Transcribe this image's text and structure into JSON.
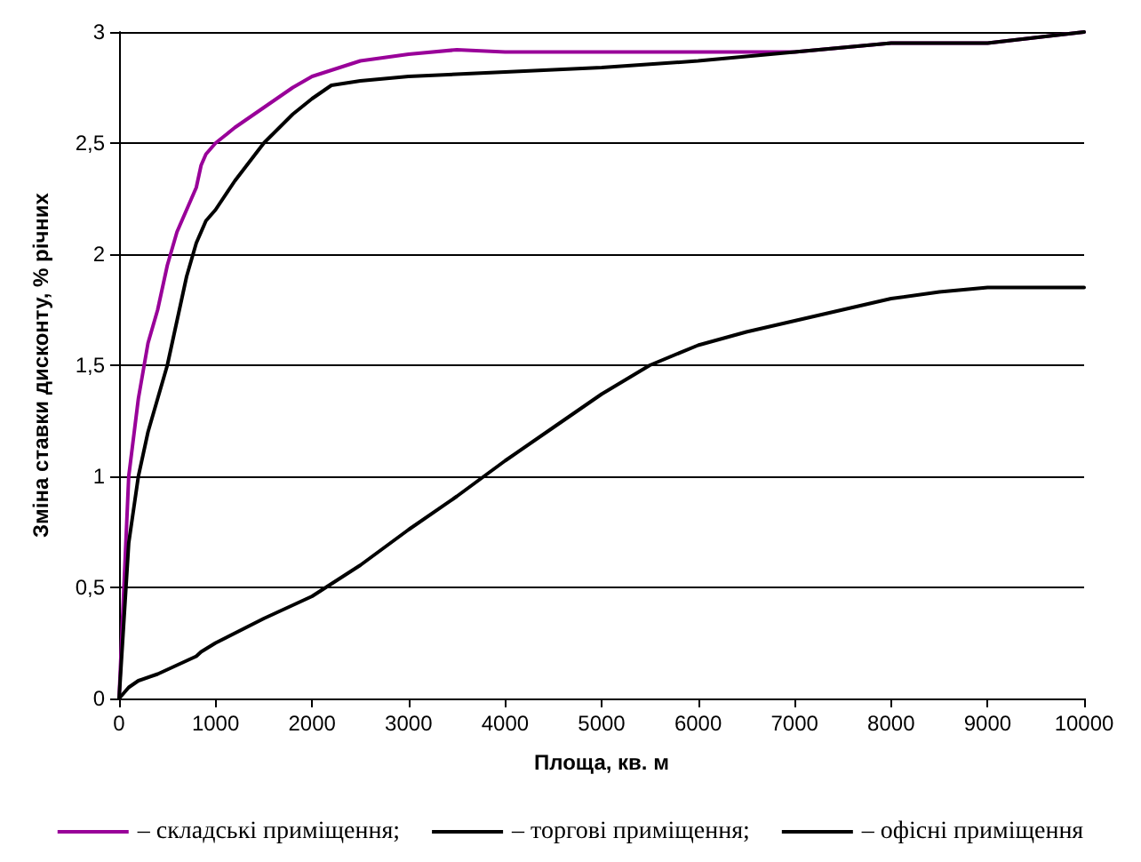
{
  "chart_data": {
    "type": "line",
    "xlabel": "Площа, кв. м",
    "ylabel": "Зміна ставки дисконту, % річних",
    "xlim": [
      0,
      10000
    ],
    "xticks": [
      0,
      1000,
      2000,
      3000,
      4000,
      5000,
      6000,
      7000,
      8000,
      9000,
      10000
    ],
    "ylim": [
      0,
      3
    ],
    "yticks": [
      0,
      {
        "value": 0.5,
        "label": "0,5"
      },
      1,
      {
        "value": 1.5,
        "label": "1,5"
      },
      2,
      {
        "value": 2.5,
        "label": "2,5"
      },
      3
    ],
    "grid": "y",
    "legend": "bottom",
    "marker": "none",
    "line_style": "solid",
    "series": [
      {
        "name": "– складські приміщення;",
        "color": "#990099",
        "x": [
          0,
          100,
          200,
          300,
          400,
          500,
          600,
          700,
          800,
          850,
          900,
          1000,
          1200,
          1500,
          1800,
          2000,
          2500,
          3000,
          3500,
          4000,
          5000,
          6000,
          7000,
          7500,
          8000,
          9000,
          10000
        ],
        "values": [
          0,
          1.0,
          1.35,
          1.6,
          1.75,
          1.95,
          2.1,
          2.2,
          2.3,
          2.4,
          2.45,
          2.5,
          2.57,
          2.66,
          2.75,
          2.8,
          2.87,
          2.9,
          2.92,
          2.91,
          2.91,
          2.91,
          2.91,
          2.93,
          2.95,
          2.95,
          3.0
        ]
      },
      {
        "name": "– торгові приміщення;",
        "color": "#000000",
        "x": [
          0,
          100,
          200,
          300,
          400,
          500,
          600,
          700,
          800,
          900,
          1000,
          1200,
          1500,
          1800,
          2000,
          2200,
          2500,
          3000,
          4000,
          5000,
          6000,
          7000,
          8000,
          9000,
          10000
        ],
        "values": [
          0,
          0.7,
          1.0,
          1.2,
          1.35,
          1.5,
          1.7,
          1.9,
          2.05,
          2.15,
          2.2,
          2.33,
          2.5,
          2.63,
          2.7,
          2.76,
          2.78,
          2.8,
          2.82,
          2.84,
          2.87,
          2.91,
          2.95,
          2.95,
          3.0
        ]
      },
      {
        "name": "– офісні приміщення",
        "color": "#000000",
        "x": [
          0,
          100,
          200,
          400,
          600,
          800,
          850,
          1000,
          1500,
          2000,
          2500,
          3000,
          3500,
          4000,
          4500,
          5000,
          5500,
          6000,
          6500,
          7000,
          7500,
          8000,
          8500,
          9000,
          10000
        ],
        "values": [
          0,
          0.05,
          0.08,
          0.11,
          0.15,
          0.19,
          0.21,
          0.25,
          0.36,
          0.46,
          0.6,
          0.76,
          0.91,
          1.07,
          1.22,
          1.37,
          1.5,
          1.59,
          1.65,
          1.7,
          1.75,
          1.8,
          1.83,
          1.85,
          1.85
        ]
      }
    ]
  }
}
